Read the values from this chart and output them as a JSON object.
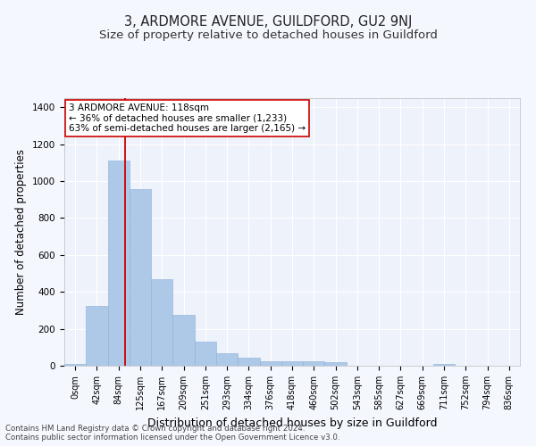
{
  "title": "3, ARDMORE AVENUE, GUILDFORD, GU2 9NJ",
  "subtitle": "Size of property relative to detached houses in Guildford",
  "xlabel": "Distribution of detached houses by size in Guildford",
  "ylabel": "Number of detached properties",
  "footer_line1": "Contains HM Land Registry data © Crown copyright and database right 2024.",
  "footer_line2": "Contains public sector information licensed under the Open Government Licence v3.0.",
  "categories": [
    "0sqm",
    "42sqm",
    "84sqm",
    "125sqm",
    "167sqm",
    "209sqm",
    "251sqm",
    "293sqm",
    "334sqm",
    "376sqm",
    "418sqm",
    "460sqm",
    "502sqm",
    "543sqm",
    "585sqm",
    "627sqm",
    "669sqm",
    "711sqm",
    "752sqm",
    "794sqm",
    "836sqm"
  ],
  "values": [
    10,
    325,
    1113,
    955,
    469,
    275,
    130,
    70,
    42,
    22,
    25,
    25,
    18,
    0,
    0,
    0,
    0,
    12,
    0,
    0,
    0
  ],
  "bar_color": "#aec8e8",
  "bar_edge_color": "#8ab0d8",
  "vline_x_index": 2.78,
  "vline_color": "#cc0000",
  "annotation_text": "3 ARDMORE AVENUE: 118sqm\n← 36% of detached houses are smaller (1,233)\n63% of semi-detached houses are larger (2,165) →",
  "annotation_box_color": "#cc0000",
  "ylim": [
    0,
    1450
  ],
  "yticks": [
    0,
    200,
    400,
    600,
    800,
    1000,
    1200,
    1400
  ],
  "bg_color": "#eef2fb",
  "grid_color": "#ffffff",
  "fig_bg_color": "#f5f7ff",
  "title_fontsize": 10.5,
  "subtitle_fontsize": 9.5,
  "xlabel_fontsize": 9,
  "ylabel_fontsize": 8.5,
  "tick_fontsize": 7,
  "annotation_fontsize": 7.5,
  "footer_fontsize": 6.2
}
